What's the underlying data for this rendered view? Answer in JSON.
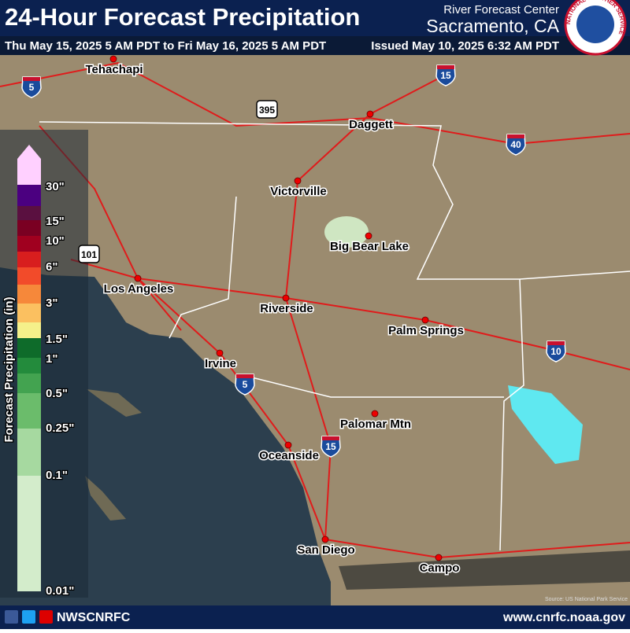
{
  "header": {
    "title": "24-Hour Forecast Precipitation",
    "period": "Thu May 15, 2025 5 AM PDT to Fri May 16, 2025 5 AM PDT",
    "agency": "River Forecast Center",
    "office": "Sacramento, CA",
    "issued": "Issued May 10, 2025 6:32 AM PDT",
    "badge": "NATIONAL WEATHER SERVICE"
  },
  "legend": {
    "title": "Forecast Precipitation (in)",
    "labels": [
      "30\"",
      "15\"",
      "10\"",
      "6\"",
      "3\"",
      "1.5\"",
      "1\"",
      "0.5\"",
      "0.25\"",
      "0.1\"",
      "0.01\""
    ]
  },
  "cities": [
    "Tehachapi",
    "Daggett",
    "Victorville",
    "Big Bear Lake",
    "Los Angeles",
    "Riverside",
    "Palm Springs",
    "Irvine",
    "Palomar Mtn",
    "Oceanside",
    "San Diego",
    "Campo"
  ],
  "highways": [
    "5",
    "15",
    "395",
    "40",
    "101",
    "10",
    "5",
    "15"
  ],
  "footer": {
    "handle": "NWSCNRFC",
    "url": "www.cnrfc.noaa.gov",
    "source": "Source: US National Park Service"
  }
}
